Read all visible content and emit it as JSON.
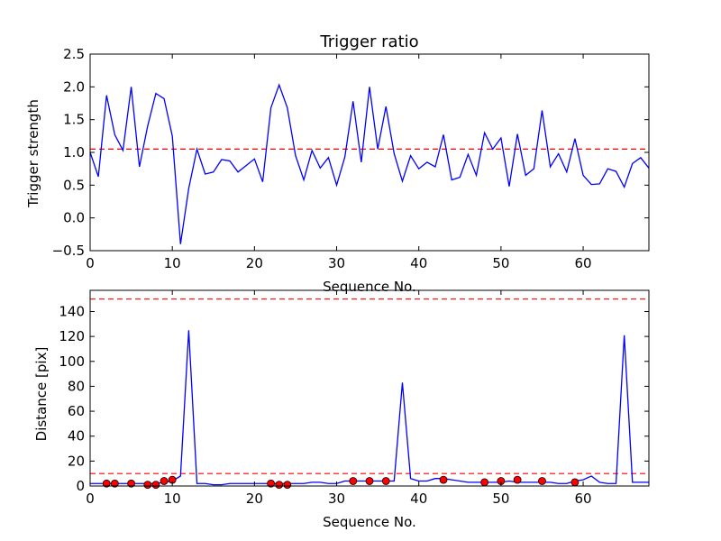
{
  "chart_data": [
    {
      "type": "line",
      "title": "Trigger ratio",
      "xlabel": "Sequence No.",
      "ylabel": "Trigger strength",
      "xlim": [
        0,
        68
      ],
      "ylim": [
        -0.5,
        2.5
      ],
      "xticks": [
        "0",
        "10",
        "20",
        "30",
        "40",
        "50",
        "60"
      ],
      "yticks": [
        "−0.5",
        "0.0",
        "0.5",
        "1.0",
        "1.5",
        "2.0",
        "2.5"
      ],
      "grid": false,
      "series": [
        {
          "color": "#0000ff",
          "x": [
            0,
            1,
            2,
            3,
            4,
            5,
            6,
            7,
            8,
            9,
            10,
            11,
            12,
            13,
            14,
            15,
            16,
            17,
            18,
            19,
            20,
            21,
            22,
            23,
            24,
            25,
            26,
            27,
            28,
            29,
            30,
            31,
            32,
            33,
            34,
            35,
            36,
            37,
            38,
            39,
            40,
            41,
            42,
            43,
            44,
            45,
            46,
            47,
            48,
            49,
            50,
            51,
            52,
            53,
            54,
            55,
            56,
            57,
            58,
            59,
            60,
            61,
            62,
            63,
            64,
            65,
            66,
            67,
            68
          ],
          "values": [
            1.0,
            0.63,
            1.87,
            1.27,
            1.03,
            2.0,
            0.78,
            1.4,
            1.9,
            1.82,
            1.25,
            -0.4,
            0.45,
            1.05,
            0.67,
            0.7,
            0.89,
            0.87,
            0.7,
            0.8,
            0.9,
            0.55,
            1.68,
            2.03,
            1.68,
            0.95,
            0.58,
            1.03,
            0.76,
            0.92,
            0.5,
            0.93,
            1.78,
            0.85,
            2.0,
            1.05,
            1.7,
            0.98,
            0.56,
            0.95,
            0.75,
            0.85,
            0.78,
            1.27,
            0.58,
            0.62,
            0.97,
            0.65,
            1.3,
            1.05,
            1.22,
            0.48,
            1.28,
            0.65,
            0.75,
            1.64,
            0.78,
            0.98,
            0.7,
            1.21,
            0.65,
            0.51,
            0.52,
            0.75,
            0.71,
            0.47,
            0.83,
            0.92,
            0.76
          ]
        }
      ],
      "hlines": [
        {
          "y": 1.05,
          "color": "#ff0000",
          "style": "dashed"
        }
      ]
    },
    {
      "type": "line",
      "title": "",
      "xlabel": "Sequence No.",
      "ylabel": "Distance [pix]",
      "xlim": [
        0,
        68
      ],
      "ylim": [
        0,
        157
      ],
      "xticks": [
        "0",
        "10",
        "20",
        "30",
        "40",
        "50",
        "60"
      ],
      "yticks": [
        "0",
        "20",
        "40",
        "60",
        "80",
        "100",
        "120",
        "140"
      ],
      "grid": false,
      "series": [
        {
          "color": "#0000ff",
          "x": [
            0,
            1,
            2,
            3,
            4,
            5,
            6,
            7,
            8,
            9,
            10,
            11,
            12,
            13,
            14,
            15,
            16,
            17,
            18,
            19,
            20,
            21,
            22,
            23,
            24,
            25,
            26,
            27,
            28,
            29,
            30,
            31,
            32,
            33,
            34,
            35,
            36,
            37,
            38,
            39,
            40,
            41,
            42,
            43,
            44,
            45,
            46,
            47,
            48,
            49,
            50,
            51,
            52,
            53,
            54,
            55,
            56,
            57,
            58,
            59,
            60,
            61,
            62,
            63,
            64,
            65,
            66,
            67,
            68
          ],
          "values": [
            2,
            2,
            2,
            2,
            2,
            2,
            2,
            2,
            2,
            3,
            4,
            8,
            125,
            2,
            2,
            1,
            1,
            2,
            2,
            2,
            2,
            2,
            2,
            2,
            2,
            2,
            2,
            3,
            3,
            2,
            2,
            4,
            4,
            4,
            4,
            4,
            4,
            4,
            83,
            6,
            4,
            4,
            6,
            6,
            5,
            4,
            3,
            3,
            3,
            3,
            3,
            4,
            3,
            3,
            3,
            3,
            3,
            2,
            2,
            4,
            5,
            8,
            3,
            2,
            2,
            121,
            3,
            3,
            3
          ]
        },
        {
          "type": "scatter",
          "color": "#ff0000",
          "x": [
            2,
            3,
            5,
            7,
            8,
            9,
            10,
            22,
            23,
            24,
            32,
            34,
            36,
            43,
            48,
            50,
            52,
            55,
            59
          ],
          "values": [
            2,
            2,
            2,
            1,
            1,
            4,
            5,
            2,
            1,
            1,
            4,
            4,
            4,
            5,
            3,
            4,
            5,
            4,
            3
          ]
        }
      ],
      "hlines": [
        {
          "y": 150,
          "color": "#ff0000",
          "style": "dashed"
        },
        {
          "y": 10,
          "color": "#ff0000",
          "style": "dashed"
        }
      ]
    }
  ]
}
